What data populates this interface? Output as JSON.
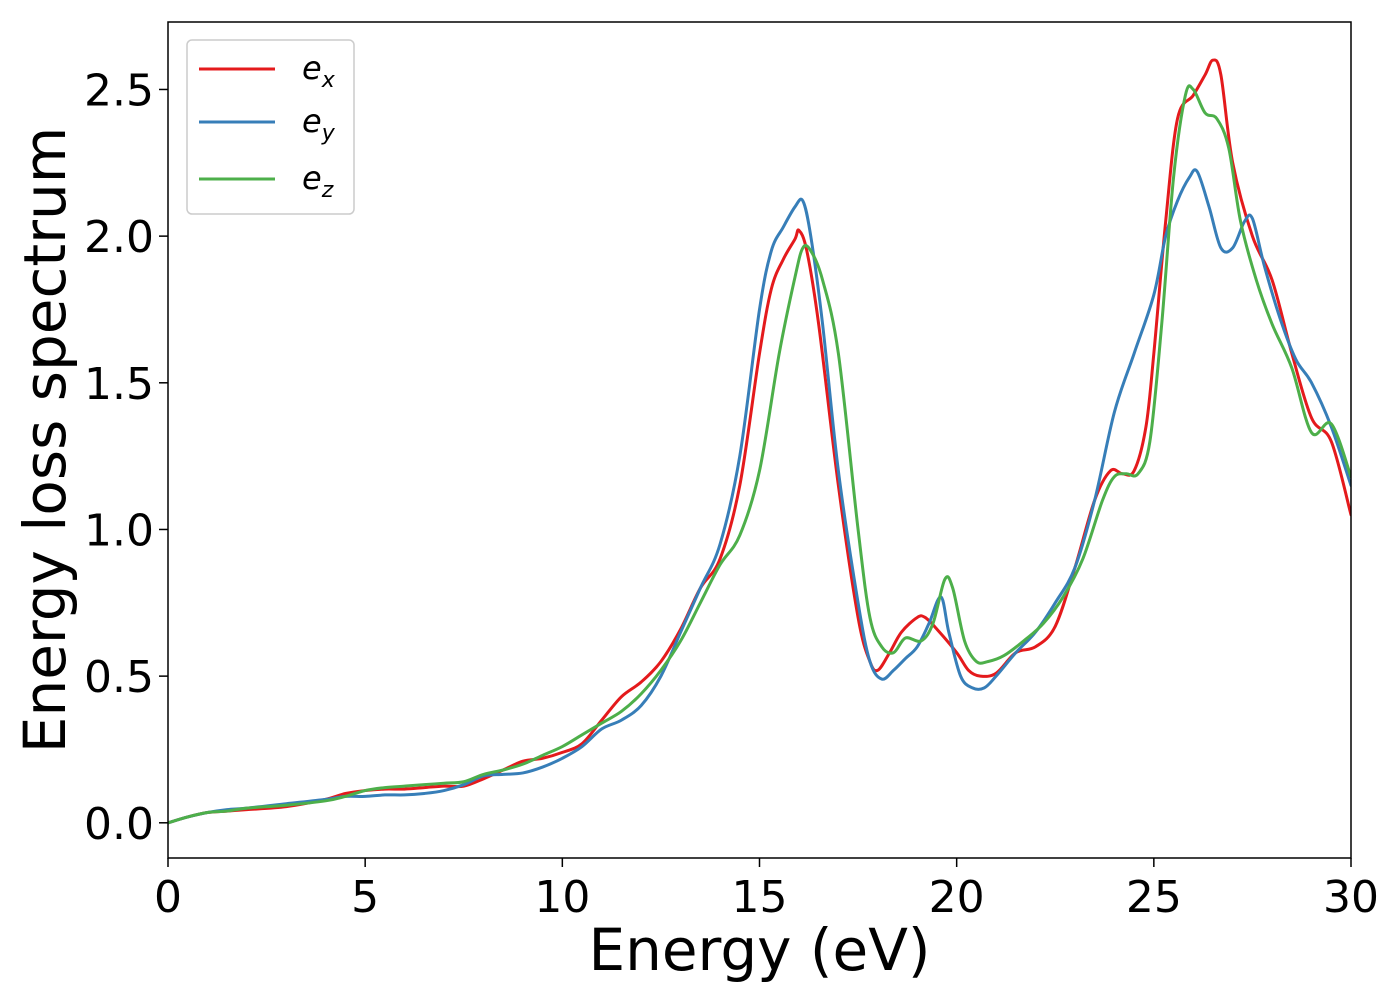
{
  "chart_data": {
    "type": "line",
    "xlabel": "Energy (eV)",
    "ylabel": "Energy loss spectrum",
    "xlim": [
      0,
      30
    ],
    "ylim": [
      -0.12,
      2.73
    ],
    "xticks": [
      0,
      5,
      10,
      15,
      20,
      25,
      30
    ],
    "xtick_labels": [
      "0",
      "5",
      "10",
      "15",
      "20",
      "25",
      "30"
    ],
    "yticks": [
      0.0,
      0.5,
      1.0,
      1.5,
      2.0,
      2.5
    ],
    "ytick_labels": [
      "0.0",
      "0.5",
      "1.0",
      "1.5",
      "2.0",
      "2.5"
    ],
    "grid": false,
    "legend_position": "top-left",
    "series": [
      {
        "name": "e",
        "subscript": "x",
        "color": "#e41a1c",
        "x": [
          0,
          0.5,
          1,
          1.5,
          2,
          3,
          4,
          4.5,
          5,
          5.5,
          6,
          6.5,
          7,
          7.5,
          8,
          8.5,
          9,
          9.5,
          10,
          10.5,
          11,
          11.5,
          12,
          12.5,
          13,
          13.5,
          14,
          14.5,
          15,
          15.3,
          15.6,
          15.9,
          16.0,
          16.2,
          16.5,
          17,
          17.5,
          17.8,
          18.0,
          18.3,
          18.6,
          19.0,
          19.2,
          19.5,
          20.0,
          20.3,
          20.6,
          21.0,
          21.5,
          22.0,
          22.5,
          23.0,
          23.5,
          23.9,
          24.2,
          24.5,
          24.8,
          25.0,
          25.3,
          25.6,
          26.0,
          26.3,
          26.5,
          26.7,
          27.0,
          27.5,
          28.0,
          28.5,
          29.0,
          29.5,
          30.0
        ],
        "y": [
          0,
          0.02,
          0.035,
          0.04,
          0.045,
          0.055,
          0.08,
          0.1,
          0.11,
          0.115,
          0.115,
          0.12,
          0.125,
          0.125,
          0.15,
          0.18,
          0.21,
          0.22,
          0.24,
          0.27,
          0.35,
          0.43,
          0.48,
          0.55,
          0.66,
          0.8,
          0.9,
          1.15,
          1.6,
          1.82,
          1.92,
          1.99,
          2.02,
          1.95,
          1.7,
          1.15,
          0.7,
          0.55,
          0.52,
          0.58,
          0.65,
          0.7,
          0.7,
          0.66,
          0.58,
          0.52,
          0.5,
          0.51,
          0.58,
          0.6,
          0.67,
          0.87,
          1.1,
          1.2,
          1.19,
          1.2,
          1.35,
          1.6,
          2.05,
          2.4,
          2.48,
          2.55,
          2.6,
          2.55,
          2.25,
          2.0,
          1.85,
          1.6,
          1.38,
          1.3,
          1.05
        ]
      },
      {
        "name": "e",
        "subscript": "y",
        "color": "#377eb8",
        "x": [
          0,
          0.5,
          1,
          1.5,
          2,
          3,
          4,
          4.5,
          5,
          5.5,
          6,
          6.5,
          7,
          7.5,
          8,
          8.5,
          9,
          9.5,
          10,
          10.5,
          11,
          11.5,
          12,
          12.5,
          13,
          13.5,
          14,
          14.5,
          15,
          15.3,
          15.6,
          15.9,
          16.1,
          16.3,
          16.6,
          17,
          17.5,
          17.8,
          18.1,
          18.4,
          18.7,
          19.0,
          19.3,
          19.6,
          19.8,
          20.1,
          20.4,
          20.7,
          21.0,
          21.5,
          22.0,
          22.5,
          23.0,
          23.5,
          24.0,
          24.5,
          25.0,
          25.3,
          25.6,
          25.9,
          26.1,
          26.4,
          26.7,
          27.0,
          27.3,
          27.5,
          27.8,
          28.2,
          28.6,
          29.0,
          29.5,
          30.0
        ],
        "y": [
          0,
          0.02,
          0.035,
          0.045,
          0.05,
          0.065,
          0.08,
          0.09,
          0.09,
          0.095,
          0.095,
          0.1,
          0.11,
          0.13,
          0.16,
          0.165,
          0.17,
          0.19,
          0.22,
          0.26,
          0.32,
          0.35,
          0.4,
          0.5,
          0.65,
          0.8,
          0.95,
          1.25,
          1.75,
          1.95,
          2.03,
          2.1,
          2.12,
          2.0,
          1.7,
          1.2,
          0.75,
          0.55,
          0.49,
          0.52,
          0.56,
          0.6,
          0.68,
          0.77,
          0.65,
          0.5,
          0.46,
          0.46,
          0.5,
          0.58,
          0.65,
          0.75,
          0.87,
          1.1,
          1.4,
          1.6,
          1.8,
          2.0,
          2.12,
          2.2,
          2.22,
          2.1,
          1.96,
          1.96,
          2.05,
          2.06,
          1.9,
          1.72,
          1.58,
          1.5,
          1.35,
          1.15
        ]
      },
      {
        "name": "e",
        "subscript": "z",
        "color": "#4daf4a",
        "x": [
          0,
          0.5,
          1,
          1.5,
          2,
          3,
          4,
          4.5,
          5,
          5.5,
          6,
          6.5,
          7,
          7.5,
          8,
          8.5,
          9,
          9.5,
          10,
          10.5,
          11,
          11.5,
          12,
          12.5,
          13,
          13.5,
          14,
          14.5,
          15,
          15.5,
          15.9,
          16.1,
          16.3,
          16.6,
          17,
          17.5,
          17.8,
          18.1,
          18.4,
          18.7,
          19.1,
          19.4,
          19.7,
          19.9,
          20.2,
          20.5,
          20.8,
          21.2,
          21.7,
          22.2,
          22.7,
          23.2,
          23.7,
          24.0,
          24.3,
          24.6,
          24.9,
          25.2,
          25.5,
          25.8,
          26.0,
          26.3,
          26.6,
          26.9,
          27.2,
          27.6,
          28.0,
          28.5,
          29.0,
          29.5,
          30.0
        ],
        "y": [
          0,
          0.02,
          0.035,
          0.04,
          0.05,
          0.06,
          0.075,
          0.09,
          0.11,
          0.12,
          0.125,
          0.13,
          0.135,
          0.14,
          0.165,
          0.18,
          0.2,
          0.23,
          0.26,
          0.3,
          0.34,
          0.38,
          0.44,
          0.52,
          0.62,
          0.75,
          0.88,
          0.98,
          1.2,
          1.6,
          1.86,
          1.96,
          1.95,
          1.85,
          1.6,
          1.0,
          0.7,
          0.6,
          0.58,
          0.63,
          0.62,
          0.68,
          0.83,
          0.8,
          0.62,
          0.55,
          0.55,
          0.57,
          0.62,
          0.68,
          0.77,
          0.9,
          1.1,
          1.18,
          1.19,
          1.19,
          1.3,
          1.7,
          2.2,
          2.48,
          2.5,
          2.42,
          2.4,
          2.3,
          2.05,
          1.85,
          1.7,
          1.55,
          1.33,
          1.36,
          1.18
        ]
      }
    ]
  }
}
